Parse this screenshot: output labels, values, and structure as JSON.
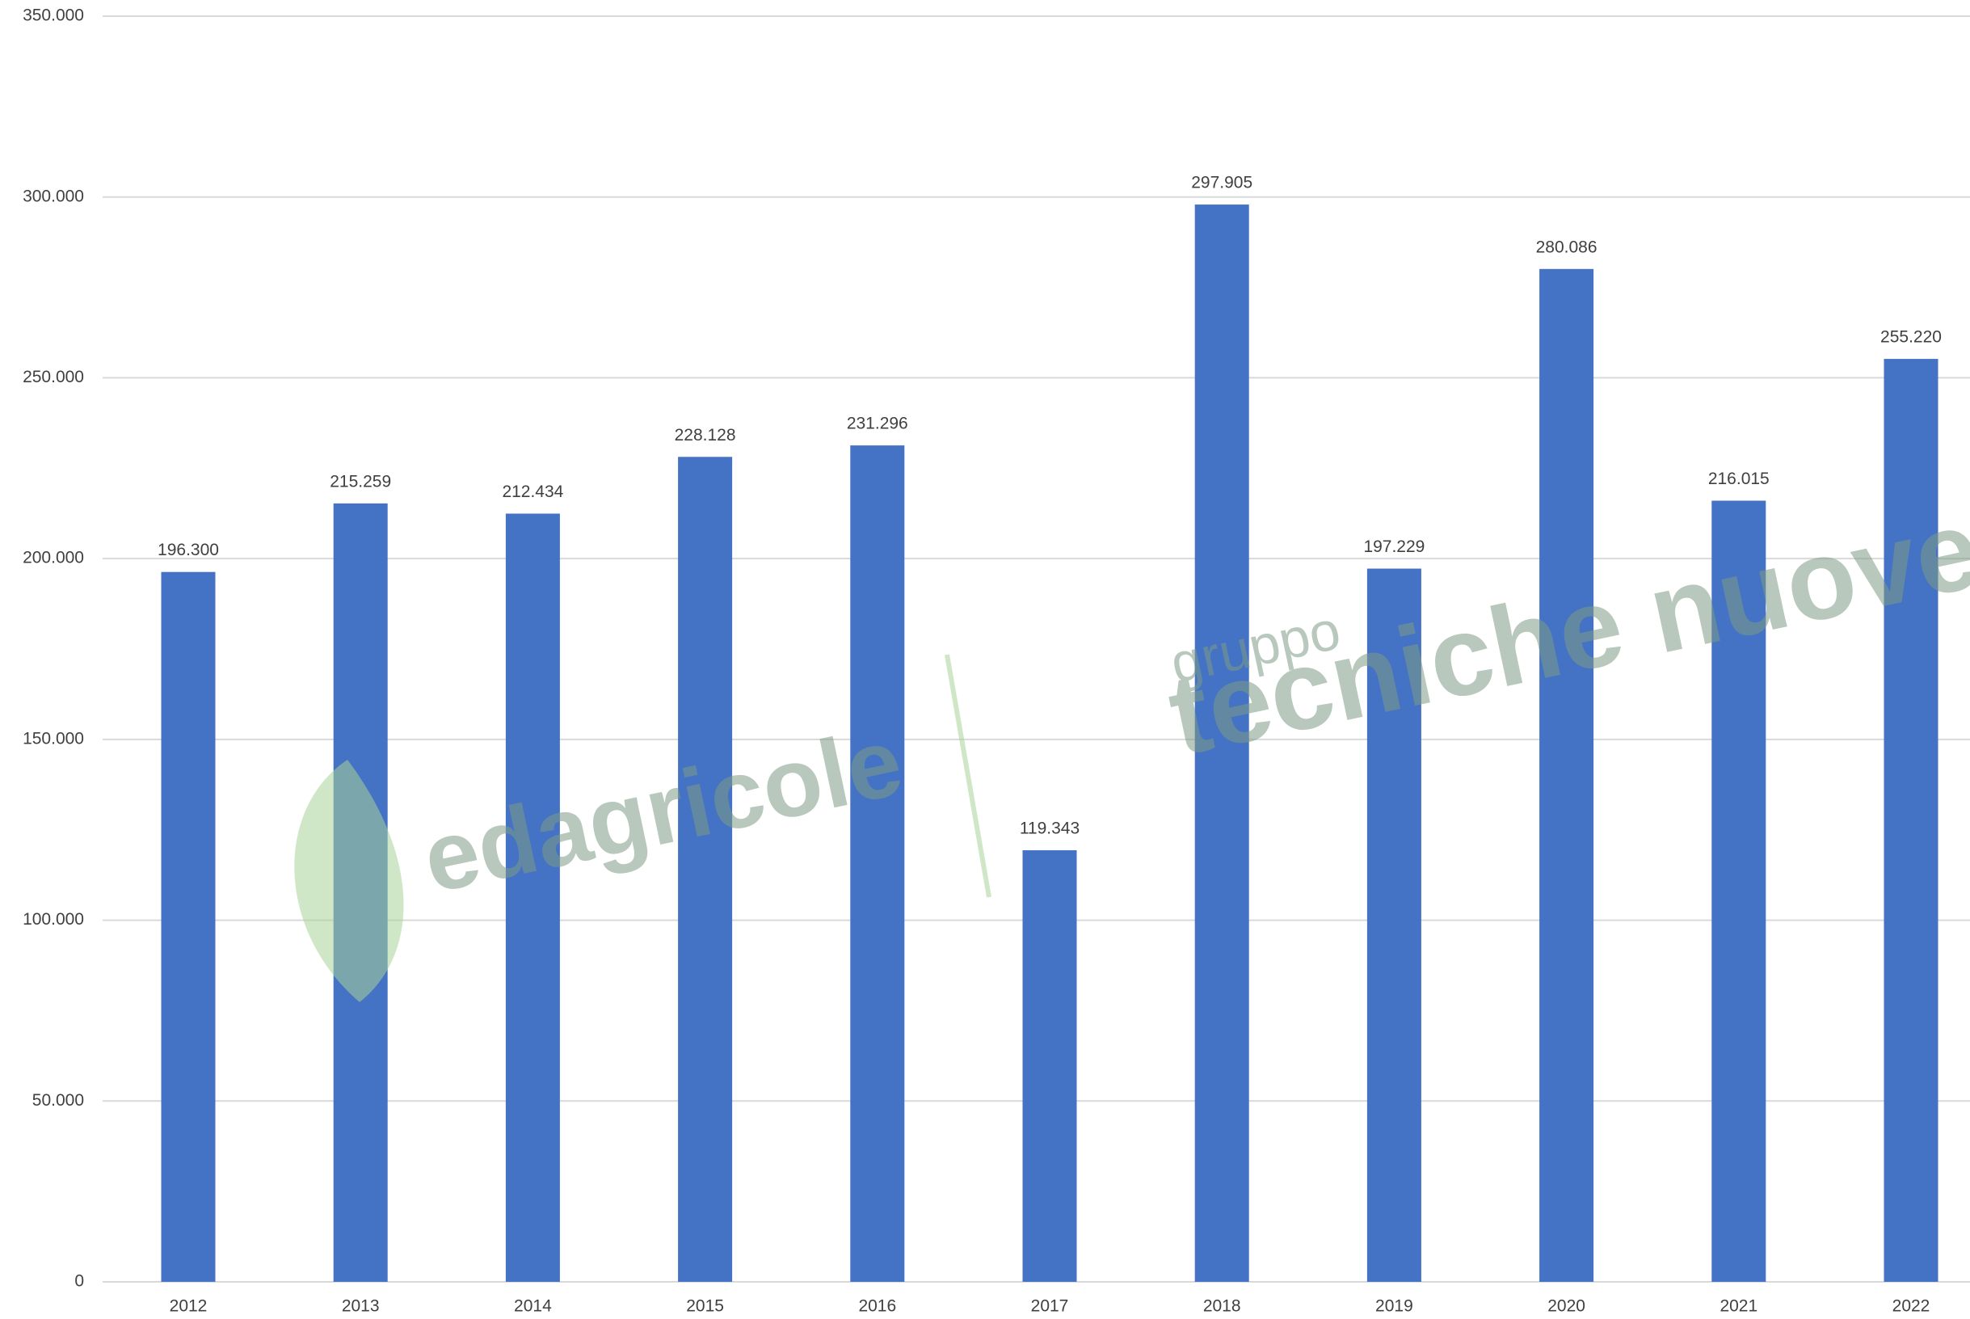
{
  "chart_data": {
    "type": "bar",
    "categories": [
      "2012",
      "2013",
      "2014",
      "2015",
      "2016",
      "2017",
      "2018",
      "2019",
      "2020",
      "2021",
      "2022"
    ],
    "values": [
      196300,
      215259,
      212434,
      228128,
      231296,
      119343,
      297905,
      197229,
      280086,
      216015,
      255220
    ],
    "value_labels": [
      "196.300",
      "215.259",
      "212.434",
      "228.128",
      "231.296",
      "119.343",
      "297.905",
      "197.229",
      "280.086",
      "216.015",
      "255.220"
    ],
    "color": "#4472c4",
    "ylim": [
      0,
      350000
    ],
    "yticks": [
      0,
      {
        "value": 50000,
        "label": "50.000"
      },
      {
        "value": 100000,
        "label": "100.000"
      },
      {
        "value": 150000,
        "label": "150.000"
      },
      {
        "value": 200000,
        "label": "200.000"
      },
      {
        "value": 250000,
        "label": "250.000"
      },
      {
        "value": 300000,
        "label": "300.000"
      },
      {
        "value": 350000,
        "label": "350.000"
      }
    ],
    "grid": true,
    "watermark": [
      "edagricole",
      "gruppo",
      "tecniche nuove"
    ]
  }
}
